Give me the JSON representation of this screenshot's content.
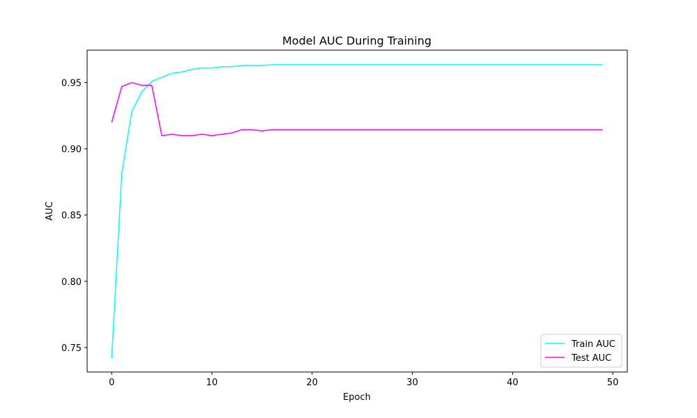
{
  "chart_data": {
    "type": "line",
    "title": "Model AUC During Training",
    "xlabel": "Epoch",
    "ylabel": "AUC",
    "xlim": [
      -2.45,
      51.45
    ],
    "ylim": [
      0.7315,
      0.9745
    ],
    "xticks": [
      0,
      10,
      20,
      30,
      40,
      50
    ],
    "yticks": [
      0.75,
      0.8,
      0.85,
      0.9,
      0.95
    ],
    "ytick_labels": [
      "0.75",
      "0.80",
      "0.85",
      "0.90",
      "0.95"
    ],
    "grid": false,
    "legend_position": "lower-right",
    "x": [
      0,
      1,
      2,
      3,
      4,
      5,
      6,
      7,
      8,
      9,
      10,
      11,
      12,
      13,
      14,
      15,
      16,
      17,
      18,
      19,
      20,
      21,
      22,
      23,
      24,
      25,
      26,
      27,
      28,
      29,
      30,
      31,
      32,
      33,
      34,
      35,
      36,
      37,
      38,
      39,
      40,
      41,
      42,
      43,
      44,
      45,
      46,
      47,
      48,
      49
    ],
    "series": [
      {
        "name": "Train AUC",
        "color": "#00FFFF",
        "values": [
          0.742,
          0.881,
          0.928,
          0.943,
          0.951,
          0.954,
          0.957,
          0.958,
          0.96,
          0.961,
          0.961,
          0.962,
          0.962,
          0.963,
          0.963,
          0.963,
          0.9635,
          0.9635,
          0.9635,
          0.9635,
          0.9635,
          0.9635,
          0.9635,
          0.9635,
          0.9635,
          0.9635,
          0.9635,
          0.9635,
          0.9635,
          0.9635,
          0.9635,
          0.9635,
          0.9635,
          0.9635,
          0.9635,
          0.9635,
          0.9635,
          0.9635,
          0.9635,
          0.9635,
          0.9635,
          0.9635,
          0.9635,
          0.9635,
          0.9635,
          0.9635,
          0.9635,
          0.9635,
          0.9635,
          0.9635
        ]
      },
      {
        "name": "Test AUC",
        "color": "#FF00FF",
        "values": [
          0.92,
          0.947,
          0.95,
          0.948,
          0.948,
          0.91,
          0.911,
          0.91,
          0.91,
          0.911,
          0.91,
          0.911,
          0.912,
          0.9145,
          0.9145,
          0.9135,
          0.9145,
          0.9145,
          0.9145,
          0.9145,
          0.9145,
          0.9145,
          0.9145,
          0.9145,
          0.9145,
          0.9145,
          0.9145,
          0.9145,
          0.9145,
          0.9145,
          0.9145,
          0.9145,
          0.9145,
          0.9145,
          0.9145,
          0.9145,
          0.9145,
          0.9145,
          0.9145,
          0.9145,
          0.9145,
          0.9145,
          0.9145,
          0.9145,
          0.9145,
          0.9145,
          0.9145,
          0.9145,
          0.9145,
          0.9145
        ]
      }
    ]
  }
}
